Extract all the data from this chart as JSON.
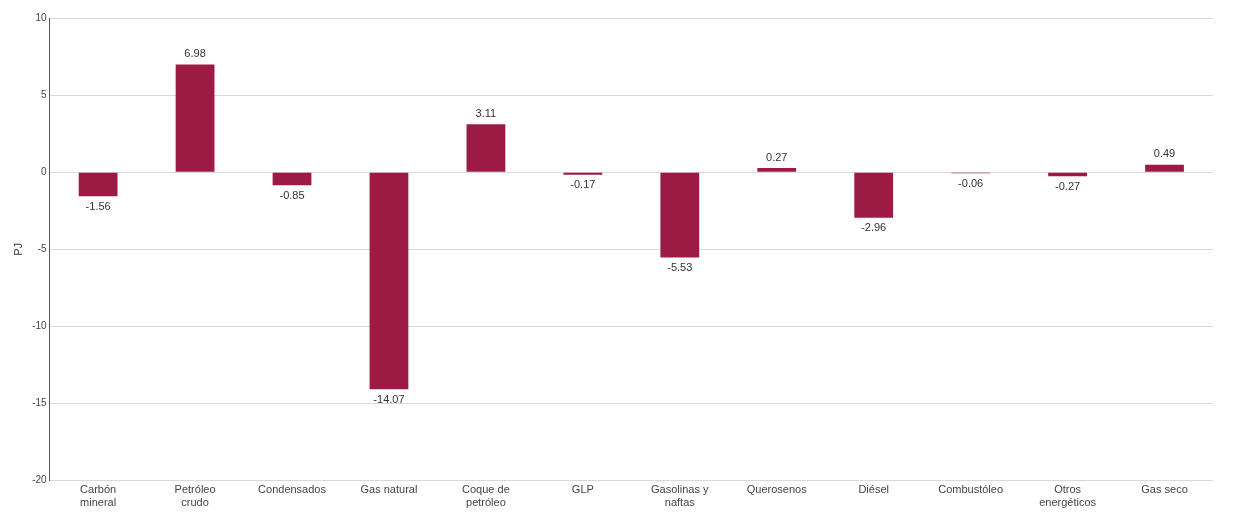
{
  "chart_data": {
    "type": "bar",
    "ylabel": "PJ",
    "categories": [
      "Carbón mineral",
      "Petróleo crudo",
      "Condensados",
      "Gas natural",
      "Coque de petróleo",
      "GLP",
      "Gasolinas y naftas",
      "Querosenos",
      "Diésel",
      "Combustóleo",
      "Otros energéticos",
      "Gas seco"
    ],
    "values": [
      -1.56,
      6.98,
      -0.85,
      -14.07,
      3.11,
      -0.17,
      -5.53,
      0.27,
      -2.96,
      -0.06,
      -0.27,
      0.49
    ],
    "color": "#9b1b45",
    "ylim": [
      -20,
      10
    ],
    "yticks": [
      -20,
      -15,
      -10,
      -5,
      0,
      5,
      10
    ],
    "grid": "y",
    "data_labels": true,
    "legend": false
  }
}
